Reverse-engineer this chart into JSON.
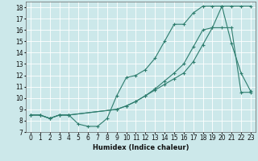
{
  "xlabel": "Humidex (Indice chaleur)",
  "bg_color": "#cce8ea",
  "grid_color": "#ffffff",
  "line_color": "#2e7d6e",
  "xlim": [
    -0.5,
    23.5
  ],
  "ylim": [
    7,
    18.5
  ],
  "line1_x": [
    0,
    1,
    2,
    3,
    4,
    5,
    6,
    7,
    8,
    9,
    10,
    11,
    12,
    13,
    14,
    15,
    16,
    17,
    18,
    19,
    20,
    21,
    22,
    23
  ],
  "line1_y": [
    8.5,
    8.5,
    8.2,
    8.5,
    8.5,
    7.7,
    7.5,
    7.5,
    8.2,
    10.2,
    11.8,
    12.0,
    12.5,
    13.5,
    15.0,
    16.5,
    16.5,
    17.5,
    18.1,
    18.1,
    18.1,
    14.8,
    12.2,
    10.6
  ],
  "line2_x": [
    0,
    1,
    2,
    3,
    4,
    9,
    10,
    11,
    12,
    13,
    14,
    15,
    16,
    17,
    18,
    19,
    20,
    21,
    22,
    23
  ],
  "line2_y": [
    8.5,
    8.5,
    8.2,
    8.5,
    8.5,
    9.0,
    9.3,
    9.7,
    10.2,
    10.7,
    11.2,
    11.7,
    12.2,
    13.2,
    14.7,
    16.2,
    18.1,
    18.1,
    18.1,
    18.1
  ],
  "line3_x": [
    0,
    1,
    2,
    3,
    4,
    9,
    10,
    11,
    12,
    13,
    14,
    15,
    16,
    17,
    18,
    19,
    20,
    21,
    22,
    23
  ],
  "line3_y": [
    8.5,
    8.5,
    8.2,
    8.5,
    8.5,
    9.0,
    9.3,
    9.7,
    10.2,
    10.8,
    11.5,
    12.2,
    13.0,
    14.5,
    16.0,
    16.2,
    16.2,
    16.2,
    10.5,
    10.5
  ]
}
